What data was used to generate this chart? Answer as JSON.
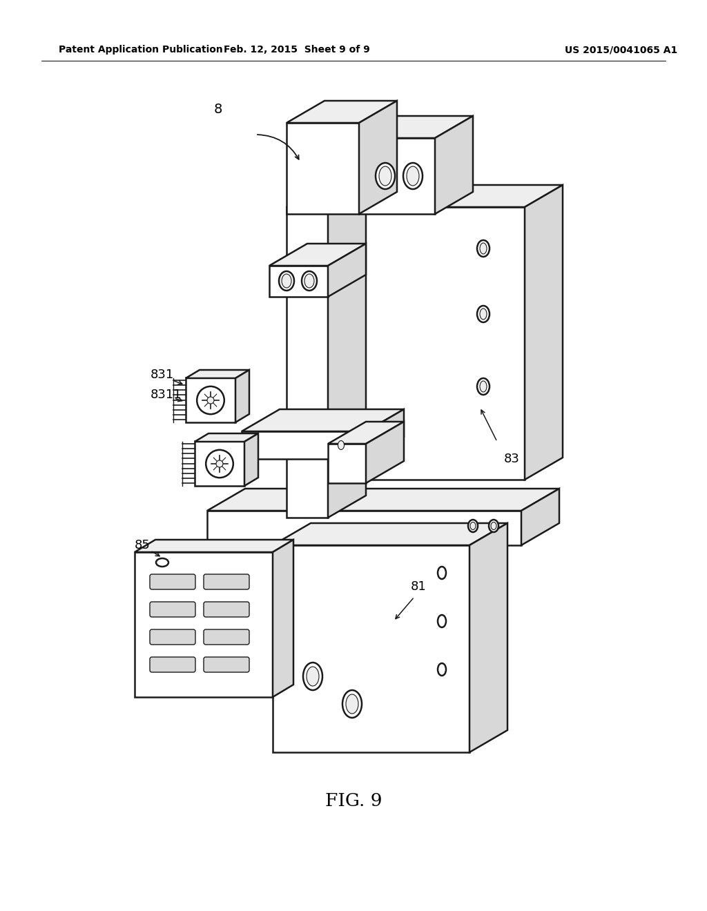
{
  "title": "FIG. 9",
  "header_left": "Patent Application Publication",
  "header_center": "Feb. 12, 2015  Sheet 9 of 9",
  "header_right": "US 2015/0041065 A1",
  "label_8": "8",
  "label_83": "83",
  "label_81": "81",
  "label_85": "85",
  "label_831": "831",
  "label_8311": "8311",
  "bg_color": "#ffffff",
  "line_color": "#1a1a1a",
  "line_width": 1.8,
  "dark_gray": "#c0c0c0",
  "mid_gray": "#d8d8d8",
  "light_gray": "#eeeeee"
}
